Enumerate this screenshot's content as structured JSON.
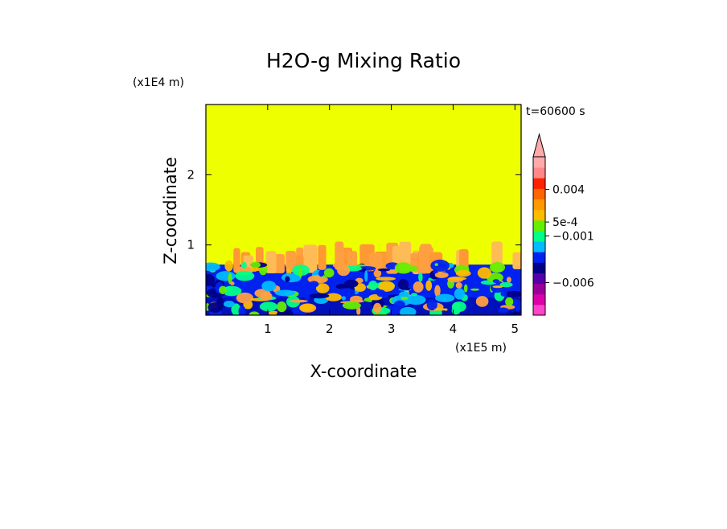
{
  "chart_data": {
    "type": "heatmap",
    "title": "H2O-g Mixing Ratio",
    "xlabel": "X-coordinate",
    "ylabel": "Z-coordinate",
    "x_unit": "(x1E5 m)",
    "y_unit": "(x1E4 m)",
    "time_label": "t=60600 s",
    "xlim": [
      0,
      5.1
    ],
    "ylim": [
      0,
      3.0
    ],
    "x_ticks": [
      1,
      2,
      3,
      4,
      5
    ],
    "y_ticks": [
      1,
      2
    ],
    "x_tick_labels": [
      "1",
      "2",
      "3",
      "4",
      "5"
    ],
    "y_tick_labels": [
      "1",
      "2"
    ],
    "colorbar_labels": [
      {
        "text": "0.004",
        "value": 0.004
      },
      {
        "text": "5e-4",
        "value": 0.0005
      },
      {
        "text": "−0.001",
        "value": -0.001
      },
      {
        "text": "−0.006",
        "value": -0.006
      }
    ],
    "colorbar_colors": [
      "#ff44cc",
      "#dd00aa",
      "#990099",
      "#5500aa",
      "#000088",
      "#0022ee",
      "#00bbff",
      "#00ff88",
      "#66ee00",
      "#ffbb00",
      "#ff9900",
      "#ff6600",
      "#ff2200",
      "#ff8888",
      "#ffaaaa"
    ],
    "regions": {
      "background_color": "#eeff00",
      "upper_boundary_z": 0.72,
      "mixed_layer_top_z": 1.05,
      "dry_layer_color": "#0022ee",
      "moist_plume_color": "#ffbb55"
    }
  }
}
